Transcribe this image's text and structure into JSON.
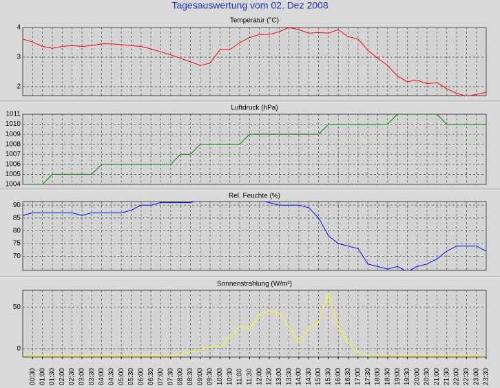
{
  "title": "Tagesauswertung vom 02. Dez 2008",
  "chart_data": [
    {
      "type": "line",
      "title": "Temperatur (°C)",
      "color": "#ff0000",
      "grid": true,
      "ylim": [
        1.7,
        4
      ],
      "yticks": [
        2,
        3,
        4
      ],
      "values": [
        3.61,
        3.51,
        3.36,
        3.3,
        3.36,
        3.39,
        3.36,
        3.39,
        3.45,
        3.45,
        3.42,
        3.39,
        3.36,
        3.28,
        3.18,
        3.08,
        2.96,
        2.84,
        2.72,
        2.8,
        3.25,
        3.25,
        3.49,
        3.66,
        3.76,
        3.76,
        3.86,
        4.0,
        3.93,
        3.81,
        3.83,
        3.81,
        3.93,
        3.69,
        3.61,
        3.23,
        2.96,
        2.72,
        2.36,
        2.17,
        2.22,
        2.1,
        2.14,
        1.93,
        1.78,
        1.68,
        1.74,
        1.81
      ]
    },
    {
      "type": "line",
      "title": "Luftdruck (hPa)",
      "color": "#008000",
      "grid": true,
      "ylim": [
        1004,
        1011
      ],
      "yticks": [
        1004,
        1005,
        1006,
        1007,
        1008,
        1009,
        1010,
        1011
      ],
      "values": [
        1004,
        1004,
        1004,
        1005,
        1005,
        1005,
        1005,
        1005,
        1006,
        1006,
        1006,
        1006,
        1006,
        1006,
        1006,
        1006,
        1007,
        1007,
        1008,
        1008,
        1008,
        1008,
        1008,
        1009,
        1009,
        1009,
        1009,
        1009,
        1009,
        1009,
        1009,
        1010,
        1010,
        1010,
        1010,
        1010,
        1010,
        1010,
        1011,
        1011,
        1011,
        1011,
        1011,
        1010,
        1010,
        1010,
        1010,
        1010
      ]
    },
    {
      "type": "line",
      "title": "Rel. Feuchte (%)",
      "color": "#0000ff",
      "grid": true,
      "ylim": [
        64.5,
        91.4
      ],
      "yticks": [
        70,
        75,
        80,
        85,
        90
      ],
      "values": [
        86,
        87,
        87,
        87,
        87,
        87,
        86,
        87,
        87,
        87,
        87,
        88,
        90,
        90,
        91,
        91,
        91,
        91,
        92,
        92,
        92,
        92,
        92,
        92,
        92,
        91,
        90,
        90,
        90,
        89,
        85,
        78,
        75,
        74,
        73,
        67,
        66,
        65,
        66,
        64,
        66,
        67,
        69,
        72,
        74,
        74,
        74,
        72
      ]
    },
    {
      "type": "line",
      "title": "Sonnenstrahlung (W/m²)",
      "color": "#ffff00",
      "grid": true,
      "ylim": [
        -10,
        70
      ],
      "yticks": [
        0,
        50
      ],
      "values": [
        -9,
        -9,
        -9,
        -9,
        -9,
        -9,
        -9,
        -9,
        -9,
        -9,
        -9,
        -9,
        -9,
        -9,
        -9,
        -9,
        -7,
        -4,
        -1,
        2,
        3,
        14,
        27,
        24,
        40,
        45,
        43,
        26,
        8,
        24,
        32,
        66,
        26,
        7,
        -5,
        -9,
        -9,
        -9,
        -9,
        -9,
        -9,
        -9,
        -9,
        -9,
        -9,
        -9,
        -9,
        -9
      ],
      "categories": [
        null,
        "00:30",
        "01:00",
        "01:30",
        "02:00",
        "02:30",
        "03:00",
        "03:30",
        "04:00",
        "04:30",
        "05:00",
        "05:30",
        "06:00",
        "06:30",
        "07:00",
        "07:30",
        "08:00",
        "08:30",
        "09:00",
        "09:30",
        "10:00",
        "10:30",
        "11:00",
        "11:30",
        "12:00",
        "12:30",
        "13:00",
        "13:30",
        "14:00",
        "14:30",
        "15:00",
        "15:30",
        "16:00",
        "16:30",
        "17:00",
        "17:30",
        "18:00",
        "18:30",
        "19:00",
        "19:30",
        "20:00",
        "20:30",
        "21:00",
        "21:30",
        "22:00",
        "22:30",
        "23:00",
        "23:30"
      ]
    }
  ]
}
